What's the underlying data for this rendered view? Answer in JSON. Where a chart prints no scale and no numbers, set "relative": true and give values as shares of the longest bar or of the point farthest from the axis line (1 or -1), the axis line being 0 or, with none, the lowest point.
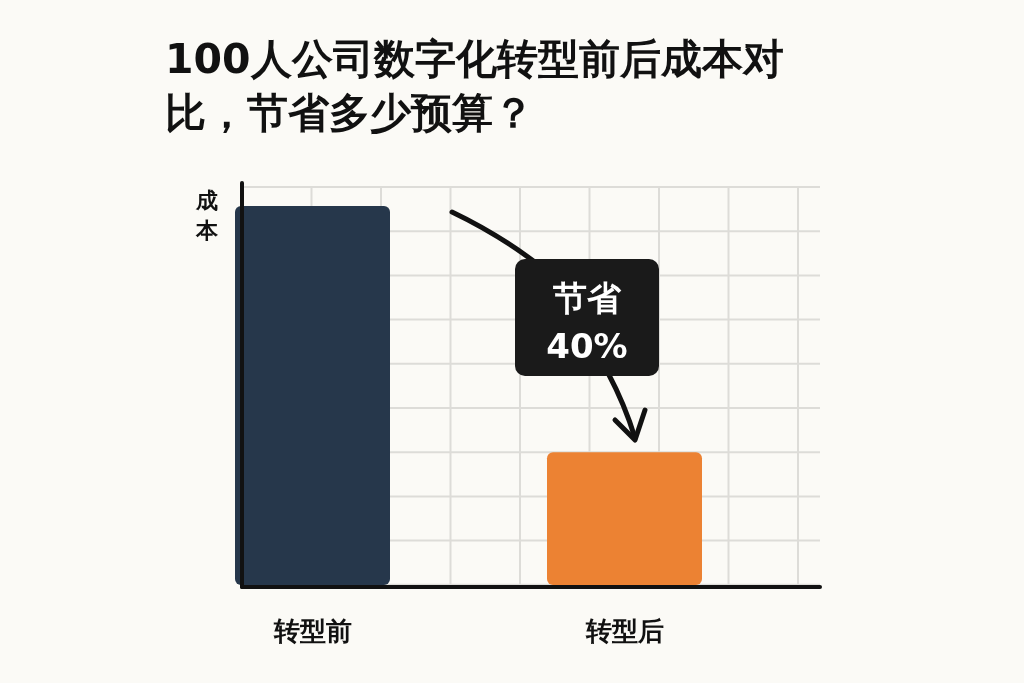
{
  "chart_data": {
    "type": "bar",
    "title": "100人公司数字化转型前后成本对比，节省多少预算？",
    "ylabel": "成本",
    "categories": [
      "转型前",
      "转型后"
    ],
    "relative": true,
    "grid": true,
    "values": [
      1,
      0.35
    ],
    "colors": [
      "#26374b",
      "#ec8233"
    ],
    "annotations": [
      "节省 40%"
    ]
  }
}
